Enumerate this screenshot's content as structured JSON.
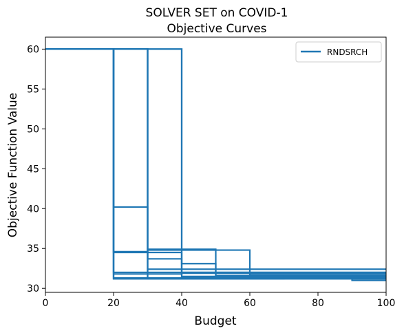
{
  "chart_data": {
    "type": "line",
    "title": "SOLVER SET on COVID-1",
    "subtitle": "Objective Curves",
    "xlabel": "Budget",
    "ylabel": "Objective Function Value",
    "xlim": [
      0,
      100
    ],
    "ylim": [
      29.5,
      61.5
    ],
    "xticks": [
      "0",
      "20",
      "40",
      "60",
      "80",
      "100"
    ],
    "yticks": [
      "30",
      "35",
      "40",
      "45",
      "50",
      "55",
      "60"
    ],
    "grid": false,
    "legend_position": "top-right",
    "color": "#1f77b4",
    "series": [
      {
        "name": "RNDSRCH",
        "x": [
          0,
          20,
          20,
          100
        ],
        "y": [
          60,
          60,
          31.2,
          31.2
        ]
      },
      {
        "name": "",
        "x": [
          0,
          30,
          30,
          100
        ],
        "y": [
          60,
          60,
          32.4,
          32.4
        ]
      },
      {
        "name": "",
        "x": [
          0,
          40,
          40,
          100
        ],
        "y": [
          60,
          60,
          31.4,
          31.4
        ]
      },
      {
        "name": "",
        "x": [
          0,
          20,
          20,
          30,
          30,
          100
        ],
        "y": [
          60,
          60,
          40.2,
          40.2,
          31.3,
          31.3
        ]
      },
      {
        "name": "",
        "x": [
          0,
          20,
          20,
          40,
          40,
          100
        ],
        "y": [
          60,
          60,
          34.5,
          34.5,
          31.5,
          31.5
        ]
      },
      {
        "name": "",
        "x": [
          0,
          20,
          20,
          30,
          30,
          50,
          50,
          100
        ],
        "y": [
          60,
          60,
          34.6,
          34.6,
          34.9,
          34.9,
          31.6,
          31.6
        ]
      },
      {
        "name": "",
        "x": [
          0,
          20,
          20,
          40,
          40,
          100
        ],
        "y": [
          60,
          60,
          31.8,
          31.8,
          31.9,
          31.9
        ]
      },
      {
        "name": "",
        "x": [
          0,
          30,
          30,
          60,
          60,
          100
        ],
        "y": [
          60,
          60,
          34.8,
          34.8,
          31.7,
          31.7
        ]
      },
      {
        "name": "",
        "x": [
          0,
          30,
          30,
          40,
          40,
          100
        ],
        "y": [
          60,
          60,
          33.7,
          33.7,
          32.0,
          32.0
        ]
      },
      {
        "name": "",
        "x": [
          0,
          40,
          40,
          50,
          50,
          100
        ],
        "y": [
          60,
          60,
          33.1,
          33.1,
          31.5,
          31.5
        ]
      },
      {
        "name": "",
        "x": [
          0,
          20,
          20,
          100
        ],
        "y": [
          60,
          60,
          32.0,
          32.0
        ]
      },
      {
        "name": "",
        "x": [
          0,
          20,
          20,
          90,
          90,
          100
        ],
        "y": [
          60,
          60,
          31.2,
          31.2,
          31.0,
          31.0
        ]
      },
      {
        "name": "",
        "x": [
          0,
          30,
          30,
          70,
          70,
          100
        ],
        "y": [
          60,
          60,
          31.2,
          31.2,
          31.6,
          31.6
        ]
      },
      {
        "name": "",
        "x": [
          0,
          20,
          20,
          100
        ],
        "y": [
          60,
          60,
          31.3,
          31.3
        ]
      }
    ]
  }
}
